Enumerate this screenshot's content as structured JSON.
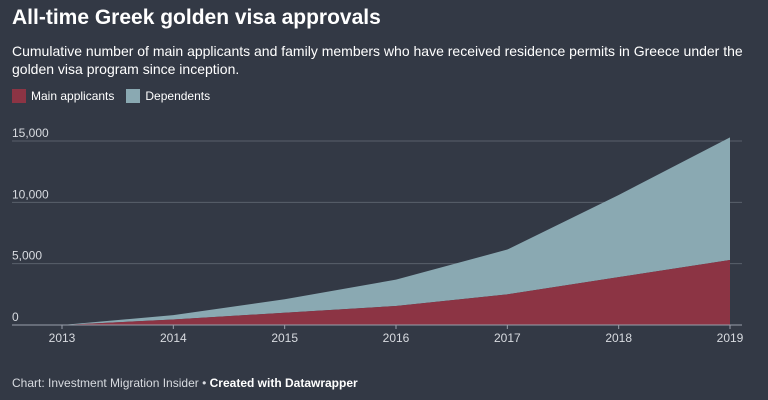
{
  "header": {
    "title": "All-time Greek golden visa approvals",
    "subtitle": "Cumulative number of main applicants and family members who have received residence permits in Greece under the golden visa program since inception."
  },
  "footer": {
    "source": "Chart: Investment Migration Insider",
    "separator": "•",
    "credit": "Created with Datawrapper"
  },
  "colors": {
    "background": "#333945",
    "main": "#8c3444",
    "dependents": "#8aa9b2",
    "grid": "#5a606b",
    "tick": "#d8dbe0"
  },
  "chart_data": {
    "type": "area",
    "stacked": true,
    "x": [
      2013,
      2014,
      2015,
      2016,
      2017,
      2018,
      2019
    ],
    "xticks": [
      "2013",
      "2014",
      "2015",
      "2016",
      "2017",
      "2018",
      "2019"
    ],
    "ylim": [
      0,
      15000
    ],
    "yticks": [
      0,
      5000,
      10000,
      15000
    ],
    "ytick_labels": [
      "0",
      "5,000",
      "10,000",
      "15,000"
    ],
    "grid": true,
    "legend_position": "top-left",
    "series": [
      {
        "name": "Main applicants",
        "x": [
          2013,
          2014,
          2015,
          2016,
          2017,
          2018,
          2019
        ],
        "values": [
          0,
          450,
          1000,
          1550,
          2500,
          3900,
          5300
        ]
      },
      {
        "name": "Dependents",
        "x": [
          2013,
          2014,
          2015,
          2016,
          2017,
          2018,
          2019
        ],
        "values": [
          0,
          350,
          1100,
          2150,
          3650,
          6700,
          10000
        ]
      }
    ]
  }
}
